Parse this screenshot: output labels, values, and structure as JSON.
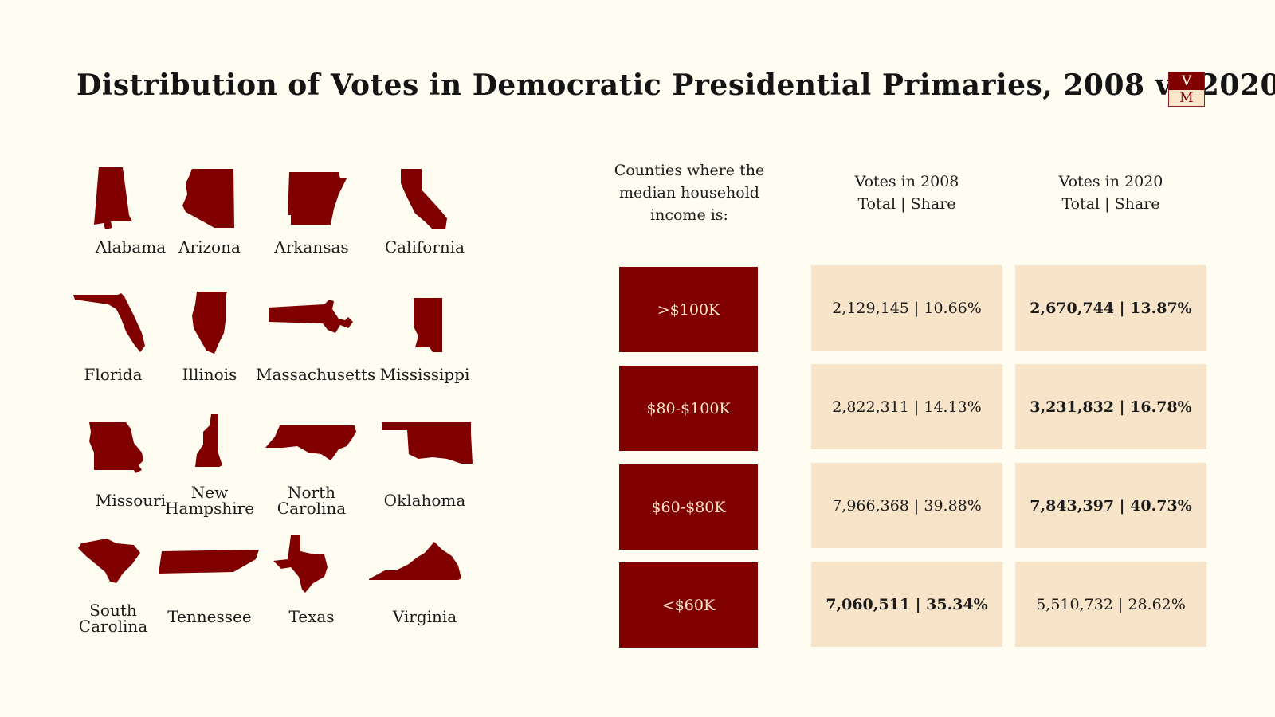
{
  "title": "Distribution of Votes in Democratic Presidential Primaries, 2008 vs 2020",
  "logo": {
    "top": "V",
    "bottom": "M"
  },
  "states": [
    "Alabama",
    "Arizona",
    "Arkansas",
    "California",
    "Florida",
    "Illinois",
    "Massachusetts",
    "Mississippi",
    "Missouri",
    "New Hampshire",
    "North Carolina",
    "Oklahoma",
    "South Carolina",
    "Tennessee",
    "Texas",
    "Virginia"
  ],
  "table": {
    "headers": {
      "category": [
        "Counties where the",
        "median household",
        "income is:"
      ],
      "y2008": [
        "Votes in 2008",
        "Total | Share"
      ],
      "y2020": [
        "Votes in 2020",
        "Total | Share"
      ]
    },
    "rows": [
      {
        "category": ">$100K",
        "v2008": "2,129,145 | 10.66%",
        "v2020": "2,670,744 | 13.87%",
        "bold": "2020"
      },
      {
        "category": "$80-$100K",
        "v2008": "2,822,311 | 14.13%",
        "v2020": "3,231,832 | 16.78%",
        "bold": "2020"
      },
      {
        "category": "$60-$80K",
        "v2008": "7,966,368 | 39.88%",
        "v2020": "7,843,397 | 40.73%",
        "bold": "2020"
      },
      {
        "category": "<$60K",
        "v2008": "7,060,511 | 35.34%",
        "v2020": "5,510,732 | 28.62%",
        "bold": "2008"
      }
    ]
  },
  "colors": {
    "accent": "#800000",
    "cell": "#f8e4c8",
    "background": "#fffdf2"
  }
}
